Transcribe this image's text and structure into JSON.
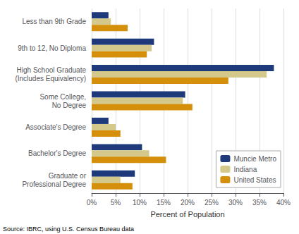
{
  "chart_data": {
    "type": "bar",
    "orientation": "horizontal",
    "categories": [
      "Less than 9th Grade",
      "9th to 12, No Diploma",
      "High School Graduate\n(Includes Equivalency)",
      "Some College,\nNo Degree",
      "Associate's Degree",
      "Bachelor's Degree",
      "Graduate or\nProfessional Degree"
    ],
    "series": [
      {
        "name": "Muncie Metro",
        "color": "#1f3a7a",
        "values": [
          3.5,
          13.0,
          38.0,
          19.5,
          3.5,
          10.5,
          9.0
        ]
      },
      {
        "name": "Indiana",
        "color": "#d4c98a",
        "values": [
          4.0,
          12.5,
          36.5,
          19.0,
          5.0,
          12.0,
          6.0
        ]
      },
      {
        "name": "United States",
        "color": "#d4900a",
        "values": [
          7.5,
          11.5,
          28.5,
          21.0,
          6.0,
          15.5,
          8.5
        ]
      }
    ],
    "xlabel": "Percent of Population",
    "xlim": [
      0,
      40
    ],
    "xticks": [
      {
        "value": 0,
        "label": "0%"
      },
      {
        "value": 5,
        "label": "5%"
      },
      {
        "value": 10,
        "label": "10%"
      },
      {
        "value": 15,
        "label": "15%"
      },
      {
        "value": 20,
        "label": "20%"
      },
      {
        "value": 25,
        "label": "25%"
      },
      {
        "value": 30,
        "label": "30%"
      },
      {
        "value": 35,
        "label": "35%"
      },
      {
        "value": 40,
        "label": "40%"
      }
    ],
    "grid": true,
    "legend": "lower right",
    "annotations": [
      "Source: IBRC, using U.S. Census Bureau data"
    ]
  }
}
